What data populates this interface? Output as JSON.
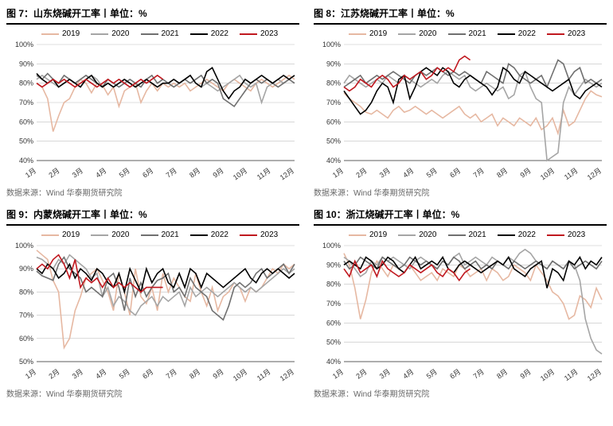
{
  "source_text": "数据来源：Wind 华泰期货研究院",
  "months": [
    "1月",
    "2月",
    "3月",
    "4月",
    "5月",
    "6月",
    "7月",
    "8月",
    "9月",
    "10月",
    "11月",
    "12月"
  ],
  "series_meta": [
    {
      "name": "2019",
      "color": "#e6b8a2"
    },
    {
      "name": "2020",
      "color": "#a5a5a5"
    },
    {
      "name": "2021",
      "color": "#707070"
    },
    {
      "name": "2022",
      "color": "#000000"
    },
    {
      "name": "2023",
      "color": "#c0181f"
    }
  ],
  "charts": [
    {
      "id": "fig7",
      "title": "图 7：山东烧碱开工率丨单位：%",
      "ylim": [
        40,
        100
      ],
      "ytick_step": 10,
      "y_suffix": "%",
      "background": "#ffffff",
      "grid_color": "#bfbfbf",
      "title_fontsize": 12,
      "label_fontsize": 9,
      "line_width": 1.6,
      "series": {
        "2019": [
          80,
          78,
          72,
          55,
          63,
          70,
          72,
          78,
          82,
          80,
          75,
          80,
          79,
          74,
          78,
          68,
          76,
          78,
          80,
          70,
          76,
          80,
          76,
          80,
          78,
          80,
          78,
          80,
          76,
          78,
          80,
          82,
          80,
          78,
          76,
          80,
          82,
          80,
          78,
          76,
          80,
          82,
          80,
          78,
          80,
          82,
          84,
          82
        ],
        "2020": [
          82,
          84,
          82,
          80,
          78,
          80,
          82,
          80,
          78,
          82,
          84,
          82,
          78,
          80,
          78,
          80,
          82,
          80,
          78,
          80,
          82,
          80,
          78,
          80,
          80,
          82,
          80,
          82,
          84,
          80,
          78,
          80,
          78,
          76,
          78,
          80,
          82,
          84,
          80,
          78,
          80,
          70,
          78,
          80,
          82,
          80,
          82,
          84
        ],
        "2021": [
          84,
          82,
          85,
          82,
          80,
          84,
          82,
          80,
          82,
          84,
          82,
          80,
          78,
          82,
          80,
          78,
          80,
          82,
          80,
          78,
          82,
          84,
          80,
          82,
          80,
          78,
          80,
          82,
          80,
          82,
          84,
          80,
          82,
          80,
          72,
          70,
          68,
          72,
          76,
          80,
          82,
          80,
          82,
          80,
          78,
          80,
          82,
          80
        ],
        "2022": [
          85,
          82,
          80,
          82,
          78,
          80,
          82,
          80,
          78,
          82,
          84,
          80,
          78,
          80,
          78,
          80,
          82,
          80,
          78,
          80,
          82,
          80,
          78,
          80,
          80,
          82,
          80,
          82,
          84,
          80,
          78,
          86,
          88,
          82,
          76,
          72,
          76,
          78,
          82,
          80,
          82,
          84,
          82,
          80,
          82,
          84,
          82,
          84
        ],
        "2023": [
          80,
          78,
          80,
          82,
          80,
          82,
          80,
          78,
          80,
          82,
          80,
          78,
          80,
          82,
          80,
          82,
          80,
          78,
          80,
          82,
          80,
          82,
          84,
          82
        ]
      }
    },
    {
      "id": "fig8",
      "title": "图 8：江苏烧碱开工率丨单位：%",
      "ylim": [
        40,
        100
      ],
      "ytick_step": 10,
      "y_suffix": "%",
      "background": "#ffffff",
      "grid_color": "#bfbfbf",
      "title_fontsize": 12,
      "label_fontsize": 9,
      "line_width": 1.6,
      "series": {
        "2019": [
          75,
          72,
          70,
          68,
          65,
          64,
          66,
          64,
          62,
          66,
          68,
          65,
          66,
          68,
          66,
          64,
          66,
          64,
          62,
          64,
          66,
          68,
          64,
          62,
          64,
          60,
          62,
          64,
          58,
          62,
          60,
          58,
          62,
          60,
          58,
          62,
          56,
          58,
          62,
          54,
          66,
          58,
          60,
          66,
          72,
          76,
          74,
          73
        ],
        "2020": [
          80,
          84,
          82,
          80,
          78,
          80,
          82,
          80,
          84,
          82,
          80,
          84,
          82,
          80,
          78,
          80,
          82,
          80,
          84,
          86,
          84,
          82,
          84,
          78,
          76,
          78,
          80,
          78,
          76,
          78,
          72,
          74,
          84,
          86,
          78,
          72,
          70,
          40,
          42,
          44,
          70,
          78,
          74,
          78,
          82,
          80,
          78,
          80
        ],
        "2021": [
          78,
          80,
          82,
          84,
          80,
          82,
          84,
          82,
          84,
          86,
          84,
          82,
          80,
          84,
          86,
          84,
          86,
          88,
          86,
          84,
          86,
          84,
          86,
          84,
          82,
          80,
          86,
          84,
          82,
          80,
          90,
          88,
          84,
          82,
          80,
          82,
          84,
          78,
          85,
          92,
          90,
          82,
          86,
          88,
          80,
          82,
          80,
          82
        ],
        "2022": [
          76,
          72,
          68,
          64,
          66,
          70,
          76,
          80,
          78,
          70,
          82,
          84,
          72,
          78,
          86,
          88,
          86,
          84,
          88,
          86,
          80,
          78,
          82,
          84,
          82,
          80,
          78,
          74,
          78,
          88,
          86,
          82,
          80,
          86,
          84,
          82,
          80,
          78,
          76,
          78,
          80,
          82,
          74,
          72,
          76,
          78,
          80,
          78
        ],
        "2023": [
          78,
          76,
          78,
          82,
          80,
          78,
          82,
          84,
          82,
          78,
          80,
          84,
          82,
          84,
          86,
          82,
          84,
          88,
          86,
          88,
          86,
          92,
          94,
          92
        ]
      }
    },
    {
      "id": "fig9",
      "title": "图 9：内蒙烧碱开工率丨单位：%",
      "ylim": [
        50,
        100
      ],
      "ytick_step": 10,
      "y_suffix": "%",
      "background": "#ffffff",
      "grid_color": "#bfbfbf",
      "title_fontsize": 12,
      "label_fontsize": 9,
      "line_width": 1.6,
      "series": {
        "2019": [
          98,
          96,
          94,
          85,
          80,
          56,
          60,
          72,
          78,
          86,
          88,
          90,
          85,
          80,
          72,
          88,
          80,
          70,
          90,
          78,
          75,
          82,
          72,
          88,
          80,
          86,
          82,
          78,
          76,
          88,
          80,
          74,
          82,
          72,
          78,
          80,
          84,
          82,
          76,
          82,
          80,
          82,
          86,
          90,
          88,
          92,
          90,
          92
        ],
        "2020": [
          95,
          94,
          92,
          90,
          94,
          92,
          96,
          94,
          92,
          90,
          86,
          88,
          78,
          82,
          74,
          78,
          76,
          72,
          70,
          74,
          76,
          78,
          74,
          78,
          76,
          78,
          80,
          74,
          82,
          78,
          80,
          82,
          80,
          78,
          80,
          82,
          84,
          82,
          80,
          82,
          80,
          82,
          84,
          86,
          88,
          90,
          88,
          90
        ],
        "2021": [
          89,
          87,
          86,
          85,
          92,
          95,
          90,
          88,
          86,
          80,
          82,
          80,
          78,
          86,
          88,
          82,
          72,
          86,
          78,
          84,
          78,
          82,
          85,
          86,
          88,
          80,
          82,
          78,
          86,
          82,
          80,
          78,
          72,
          70,
          68,
          74,
          82,
          84,
          82,
          84,
          88,
          90,
          86,
          88,
          90,
          92,
          88,
          92
        ],
        "2022": [
          90,
          88,
          92,
          90,
          86,
          88,
          92,
          86,
          90,
          88,
          85,
          90,
          88,
          84,
          82,
          88,
          80,
          90,
          85,
          80,
          90,
          84,
          88,
          90,
          84,
          82,
          88,
          82,
          90,
          88,
          82,
          88,
          86,
          84,
          82,
          84,
          86,
          88,
          90,
          86,
          84,
          88,
          90,
          88,
          90,
          88,
          86,
          88
        ],
        "2023": [
          90,
          92,
          90,
          94,
          96,
          92,
          86,
          94,
          82,
          86,
          84,
          86,
          82,
          86,
          82,
          84,
          82,
          84,
          82,
          80,
          82,
          82,
          82,
          82
        ]
      }
    },
    {
      "id": "fig10",
      "title": "图 10：浙江烧碱开工率丨单位：%",
      "ylim": [
        40,
        100
      ],
      "ytick_step": 10,
      "y_suffix": "%",
      "background": "#ffffff",
      "grid_color": "#bfbfbf",
      "title_fontsize": 12,
      "label_fontsize": 9,
      "line_width": 1.6,
      "series": {
        "2019": [
          96,
          90,
          78,
          62,
          72,
          86,
          92,
          88,
          84,
          90,
          88,
          86,
          90,
          86,
          82,
          84,
          86,
          82,
          88,
          86,
          84,
          90,
          88,
          84,
          86,
          88,
          82,
          88,
          86,
          82,
          84,
          90,
          88,
          86,
          82,
          90,
          86,
          82,
          76,
          74,
          70,
          62,
          64,
          74,
          72,
          68,
          78,
          72
        ],
        "2020": [
          94,
          92,
          88,
          84,
          86,
          92,
          90,
          94,
          92,
          94,
          92,
          90,
          88,
          92,
          94,
          92,
          90,
          88,
          92,
          90,
          94,
          96,
          90,
          92,
          94,
          92,
          90,
          94,
          92,
          90,
          94,
          92,
          96,
          98,
          96,
          92,
          90,
          88,
          92,
          90,
          88,
          92,
          90,
          82,
          62,
          52,
          46,
          44
        ],
        "2021": [
          92,
          88,
          90,
          94,
          92,
          90,
          88,
          94,
          92,
          90,
          88,
          90,
          94,
          92,
          90,
          92,
          90,
          88,
          92,
          90,
          94,
          92,
          88,
          90,
          92,
          88,
          90,
          88,
          92,
          90,
          88,
          92,
          90,
          88,
          90,
          92,
          90,
          88,
          92,
          90,
          88,
          92,
          88,
          90,
          92,
          90,
          88,
          92
        ],
        "2022": [
          90,
          92,
          90,
          88,
          94,
          92,
          88,
          90,
          94,
          92,
          88,
          86,
          90,
          94,
          88,
          90,
          92,
          90,
          94,
          88,
          86,
          90,
          92,
          90,
          88,
          86,
          88,
          90,
          92,
          90,
          94,
          88,
          86,
          84,
          88,
          90,
          92,
          78,
          88,
          86,
          82,
          92,
          90,
          94,
          88,
          92,
          90,
          94
        ],
        "2023": [
          88,
          84,
          92,
          86,
          88,
          90,
          84,
          92,
          88,
          86,
          84,
          86,
          90,
          88,
          86,
          88,
          90,
          86,
          84,
          88,
          86,
          82,
          86,
          88
        ]
      }
    }
  ]
}
